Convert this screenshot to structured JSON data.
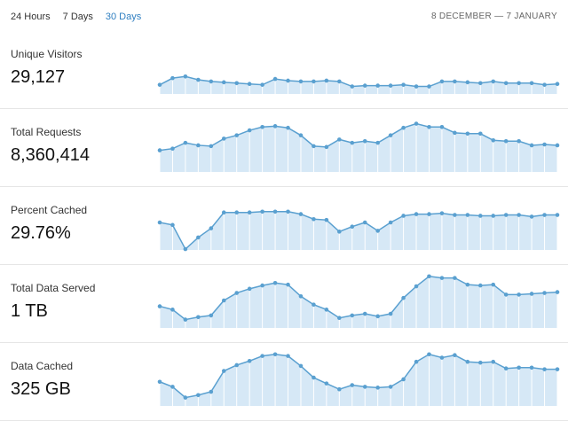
{
  "tabs": [
    {
      "label": "24 Hours",
      "active": false
    },
    {
      "label": "7 Days",
      "active": false
    },
    {
      "label": "30 Days",
      "active": true
    }
  ],
  "date_range": "8 DECEMBER — 7 JANUARY",
  "colors": {
    "accent": "#2f7fc1",
    "line": "#5aa0d0",
    "fill": "#d6e8f6",
    "grid": "#dcdcdc"
  },
  "metrics": [
    {
      "label": "Unique Visitors",
      "value": "29,127",
      "series": [
        55,
        47,
        45,
        49,
        51,
        52,
        53,
        54,
        55,
        48,
        50,
        51,
        51,
        50,
        51,
        57,
        56,
        56,
        56,
        55,
        57,
        57,
        51,
        51,
        52,
        53,
        51,
        53,
        53,
        53,
        55,
        54
      ]
    },
    {
      "label": "Total Requests",
      "value": "8,360,414",
      "series": [
        40,
        38,
        31,
        34,
        35,
        26,
        22,
        16,
        12,
        11,
        13,
        22,
        35,
        36,
        27,
        31,
        29,
        31,
        22,
        13,
        8,
        12,
        12,
        19,
        20,
        20,
        28,
        29,
        29,
        34,
        33,
        34
      ]
    },
    {
      "label": "Percent Cached",
      "value": "29.76%",
      "series": [
        33,
        36,
        65,
        51,
        40,
        21,
        21,
        21,
        20,
        20,
        20,
        23,
        29,
        30,
        44,
        38,
        33,
        43,
        33,
        25,
        23,
        23,
        22,
        24,
        24,
        25,
        25,
        24,
        24,
        26,
        24,
        24
      ]
    },
    {
      "label": "Total Data Served",
      "value": "1 TB",
      "series": [
        40,
        44,
        56,
        53,
        51,
        33,
        24,
        19,
        15,
        12,
        14,
        28,
        38,
        44,
        54,
        51,
        49,
        52,
        49,
        30,
        16,
        4,
        6,
        6,
        14,
        15,
        14,
        26,
        26,
        25,
        24,
        23
      ]
    },
    {
      "label": "Data Cached",
      "value": "325 GB",
      "series": [
        37,
        43,
        56,
        53,
        49,
        24,
        17,
        12,
        6,
        4,
        6,
        18,
        32,
        39,
        46,
        41,
        43,
        44,
        43,
        34,
        13,
        4,
        8,
        5,
        13,
        14,
        13,
        21,
        20,
        20,
        22,
        22
      ]
    }
  ]
}
